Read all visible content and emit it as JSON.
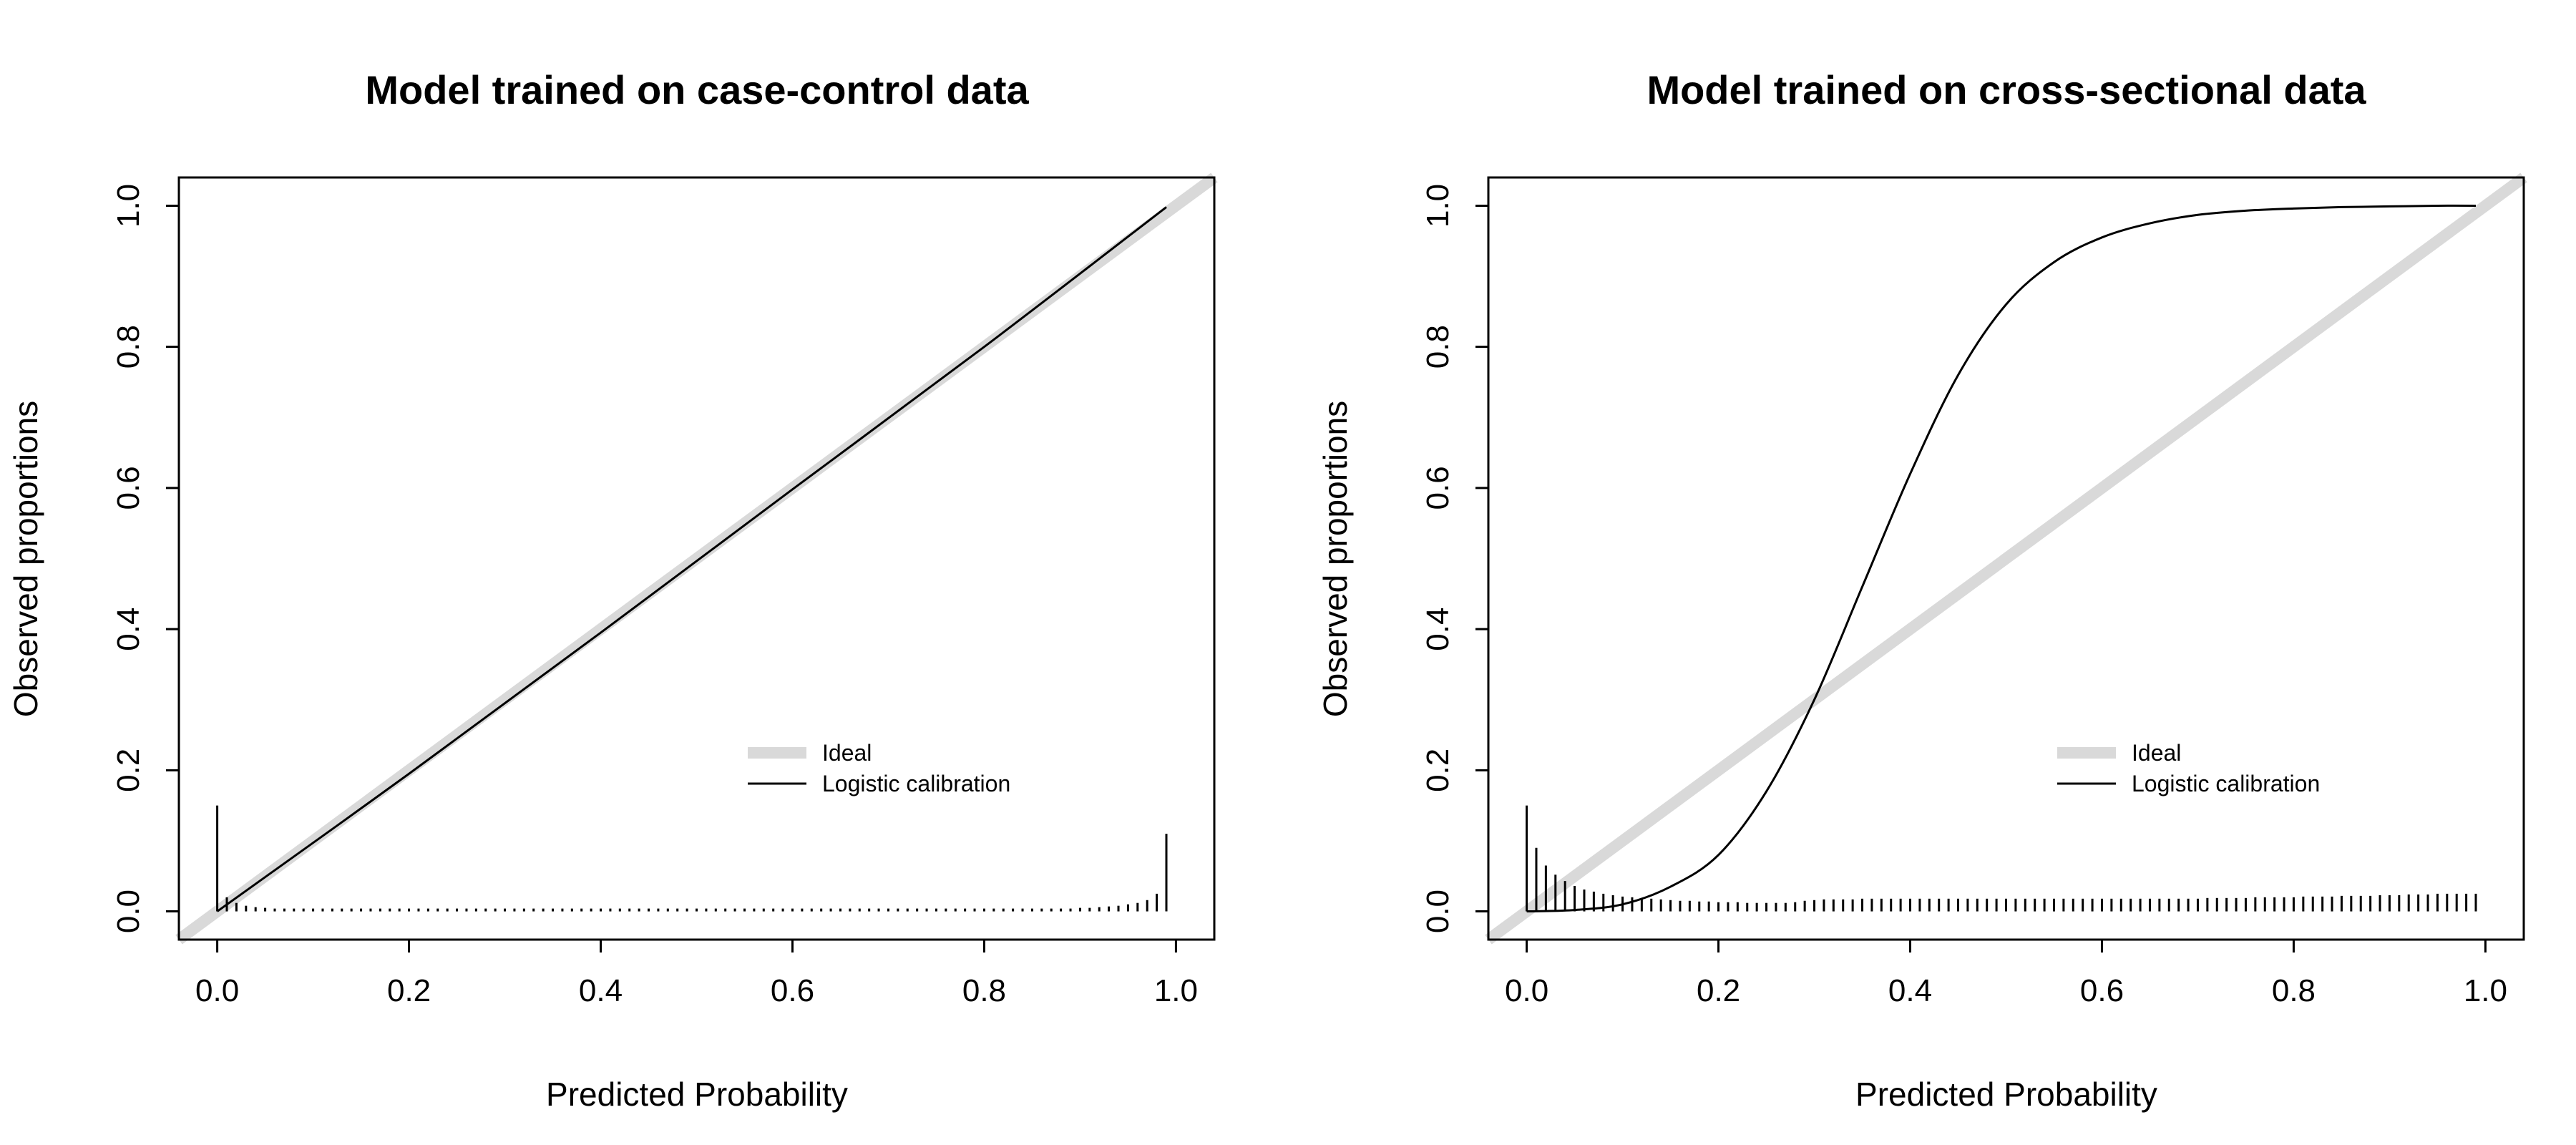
{
  "colors": {
    "ideal": "#d9d9d9",
    "curve": "#000000",
    "frame": "#000000",
    "background": "#ffffff"
  },
  "chart_data": [
    {
      "type": "line",
      "title": "Model trained on case-control data",
      "xlabel": "Predicted Probability",
      "ylabel": "Observed proportions",
      "xlim": [
        -0.04,
        1.04
      ],
      "ylim": [
        -0.04,
        1.04
      ],
      "x_ticks": [
        "0.0",
        "0.2",
        "0.4",
        "0.6",
        "0.8",
        "1.0"
      ],
      "y_ticks": [
        "0.0",
        "0.2",
        "0.4",
        "0.6",
        "0.8",
        "1.0"
      ],
      "grid": false,
      "legend_position": "lower-right",
      "legend": [
        {
          "label": "Ideal",
          "style": "thick-gray-line"
        },
        {
          "label": "Logistic calibration",
          "style": "thin-black-line"
        }
      ],
      "series": [
        {
          "name": "Ideal",
          "x": [
            -0.04,
            1.04
          ],
          "y": [
            -0.04,
            1.04
          ]
        },
        {
          "name": "Logistic calibration",
          "x": [
            0.0,
            0.2,
            0.4,
            0.6,
            0.8,
            0.99
          ],
          "y": [
            0.0,
            0.195,
            0.395,
            0.598,
            0.8,
            0.998
          ]
        }
      ],
      "rug": {
        "x": [
          0.0,
          0.01,
          0.02,
          0.03,
          0.04,
          0.05,
          0.06,
          0.07,
          0.08,
          0.09,
          0.1,
          0.11,
          0.12,
          0.13,
          0.14,
          0.15,
          0.16,
          0.17,
          0.18,
          0.19,
          0.2,
          0.21,
          0.22,
          0.23,
          0.24,
          0.25,
          0.26,
          0.27,
          0.28,
          0.29,
          0.3,
          0.31,
          0.32,
          0.33,
          0.34,
          0.35,
          0.36,
          0.37,
          0.38,
          0.39,
          0.4,
          0.41,
          0.42,
          0.43,
          0.44,
          0.45,
          0.46,
          0.47,
          0.48,
          0.49,
          0.5,
          0.51,
          0.52,
          0.53,
          0.54,
          0.55,
          0.56,
          0.57,
          0.58,
          0.59,
          0.6,
          0.61,
          0.62,
          0.63,
          0.64,
          0.65,
          0.66,
          0.67,
          0.68,
          0.69,
          0.7,
          0.71,
          0.72,
          0.73,
          0.74,
          0.75,
          0.76,
          0.77,
          0.78,
          0.79,
          0.8,
          0.81,
          0.82,
          0.83,
          0.84,
          0.85,
          0.86,
          0.87,
          0.88,
          0.89,
          0.9,
          0.91,
          0.92,
          0.93,
          0.94,
          0.95,
          0.96,
          0.97,
          0.98,
          0.99
        ],
        "heights": [
          0.15,
          0.02,
          0.012,
          0.008,
          0.006,
          0.005,
          0.004,
          0.004,
          0.004,
          0.004,
          0.004,
          0.004,
          0.004,
          0.004,
          0.004,
          0.004,
          0.004,
          0.004,
          0.004,
          0.004,
          0.004,
          0.004,
          0.004,
          0.004,
          0.004,
          0.004,
          0.004,
          0.004,
          0.004,
          0.004,
          0.004,
          0.004,
          0.004,
          0.004,
          0.004,
          0.004,
          0.004,
          0.004,
          0.004,
          0.004,
          0.004,
          0.004,
          0.004,
          0.004,
          0.004,
          0.004,
          0.004,
          0.004,
          0.004,
          0.004,
          0.004,
          0.004,
          0.004,
          0.004,
          0.004,
          0.004,
          0.004,
          0.004,
          0.004,
          0.004,
          0.004,
          0.004,
          0.004,
          0.004,
          0.004,
          0.004,
          0.004,
          0.004,
          0.004,
          0.004,
          0.004,
          0.004,
          0.004,
          0.004,
          0.004,
          0.004,
          0.004,
          0.004,
          0.004,
          0.004,
          0.004,
          0.004,
          0.004,
          0.004,
          0.004,
          0.004,
          0.004,
          0.004,
          0.004,
          0.004,
          0.005,
          0.005,
          0.006,
          0.007,
          0.008,
          0.01,
          0.012,
          0.016,
          0.025,
          0.11
        ]
      }
    },
    {
      "type": "line",
      "title": "Model trained on cross-sectional data",
      "xlabel": "Predicted Probability",
      "ylabel": "Observed proportions",
      "xlim": [
        -0.04,
        1.04
      ],
      "ylim": [
        -0.04,
        1.04
      ],
      "x_ticks": [
        "0.0",
        "0.2",
        "0.4",
        "0.6",
        "0.8",
        "1.0"
      ],
      "y_ticks": [
        "0.0",
        "0.2",
        "0.4",
        "0.6",
        "0.8",
        "1.0"
      ],
      "grid": false,
      "legend_position": "lower-right",
      "legend": [
        {
          "label": "Ideal",
          "style": "thick-gray-line"
        },
        {
          "label": "Logistic calibration",
          "style": "thin-black-line"
        }
      ],
      "series": [
        {
          "name": "Ideal",
          "x": [
            -0.04,
            1.04
          ],
          "y": [
            -0.04,
            1.04
          ]
        },
        {
          "name": "Logistic calibration",
          "x": [
            0.0,
            0.05,
            0.1,
            0.15,
            0.2,
            0.25,
            0.3,
            0.35,
            0.4,
            0.45,
            0.5,
            0.55,
            0.6,
            0.65,
            0.7,
            0.75,
            0.8,
            0.85,
            0.9,
            0.95,
            0.99
          ],
          "y": [
            0.0,
            0.002,
            0.01,
            0.035,
            0.08,
            0.17,
            0.3,
            0.46,
            0.62,
            0.76,
            0.86,
            0.92,
            0.955,
            0.975,
            0.987,
            0.993,
            0.996,
            0.998,
            0.999,
            1.0,
            1.0
          ]
        }
      ],
      "rug": {
        "x": [
          0.0,
          0.01,
          0.02,
          0.03,
          0.04,
          0.05,
          0.06,
          0.07,
          0.08,
          0.09,
          0.1,
          0.11,
          0.12,
          0.13,
          0.14,
          0.15,
          0.16,
          0.17,
          0.18,
          0.19,
          0.2,
          0.21,
          0.22,
          0.23,
          0.24,
          0.25,
          0.26,
          0.27,
          0.28,
          0.29,
          0.3,
          0.31,
          0.32,
          0.33,
          0.34,
          0.35,
          0.36,
          0.37,
          0.38,
          0.39,
          0.4,
          0.41,
          0.42,
          0.43,
          0.44,
          0.45,
          0.46,
          0.47,
          0.48,
          0.49,
          0.5,
          0.51,
          0.52,
          0.53,
          0.54,
          0.55,
          0.56,
          0.57,
          0.58,
          0.59,
          0.6,
          0.61,
          0.62,
          0.63,
          0.64,
          0.65,
          0.66,
          0.67,
          0.68,
          0.69,
          0.7,
          0.71,
          0.72,
          0.73,
          0.74,
          0.75,
          0.76,
          0.77,
          0.78,
          0.79,
          0.8,
          0.81,
          0.82,
          0.83,
          0.84,
          0.85,
          0.86,
          0.87,
          0.88,
          0.89,
          0.9,
          0.91,
          0.92,
          0.93,
          0.94,
          0.95,
          0.96,
          0.97,
          0.98,
          0.99
        ],
        "heights": [
          0.15,
          0.09,
          0.065,
          0.052,
          0.043,
          0.036,
          0.031,
          0.028,
          0.025,
          0.023,
          0.021,
          0.02,
          0.019,
          0.018,
          0.017,
          0.016,
          0.015,
          0.015,
          0.014,
          0.014,
          0.013,
          0.013,
          0.013,
          0.012,
          0.012,
          0.012,
          0.012,
          0.012,
          0.013,
          0.015,
          0.016,
          0.017,
          0.017,
          0.017,
          0.017,
          0.018,
          0.018,
          0.018,
          0.018,
          0.018,
          0.018,
          0.018,
          0.018,
          0.018,
          0.018,
          0.018,
          0.018,
          0.018,
          0.018,
          0.018,
          0.018,
          0.018,
          0.018,
          0.018,
          0.018,
          0.018,
          0.018,
          0.018,
          0.018,
          0.018,
          0.018,
          0.018,
          0.018,
          0.018,
          0.018,
          0.018,
          0.018,
          0.018,
          0.018,
          0.018,
          0.018,
          0.019,
          0.019,
          0.019,
          0.019,
          0.019,
          0.02,
          0.02,
          0.02,
          0.02,
          0.02,
          0.021,
          0.021,
          0.021,
          0.021,
          0.022,
          0.022,
          0.022,
          0.022,
          0.023,
          0.023,
          0.023,
          0.024,
          0.024,
          0.024,
          0.025,
          0.025,
          0.025,
          0.025,
          0.025
        ]
      }
    }
  ]
}
